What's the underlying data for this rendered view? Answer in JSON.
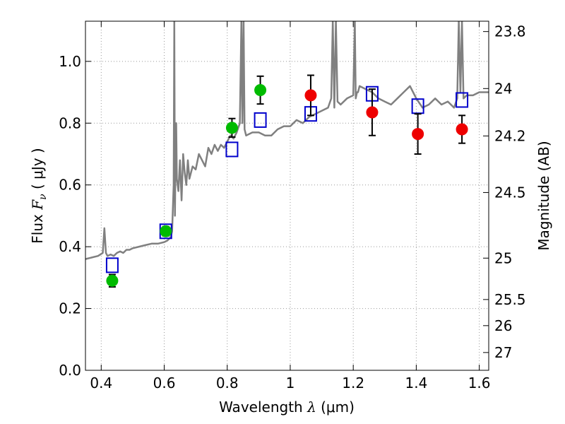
{
  "chart_data": {
    "type": "scatter",
    "xlabel_prefix": "Wavelength",
    "xlabel_symbol": "λ",
    "xlabel_unit": "(μm)",
    "ylabel_prefix": "Flux",
    "ylabel_symbol": "F",
    "ylabel_subscript": "ν",
    "ylabel_unit": "( μJy )",
    "ylabel_right": "Magnitude (AB)",
    "xlim": [
      0.35,
      1.63
    ],
    "ylim": [
      0.0,
      1.13
    ],
    "grid": true,
    "x_ticks": [
      {
        "value": 0.4,
        "label": "0.4"
      },
      {
        "value": 0.6,
        "label": "0.6"
      },
      {
        "value": 0.8,
        "label": "0.8"
      },
      {
        "value": 1.0,
        "label": "1"
      },
      {
        "value": 1.2,
        "label": "1.2"
      },
      {
        "value": 1.4,
        "label": "1.4"
      },
      {
        "value": 1.6,
        "label": "1.6"
      }
    ],
    "y_ticks": [
      {
        "value": 0.0,
        "label": "0.0"
      },
      {
        "value": 0.2,
        "label": "0.2"
      },
      {
        "value": 0.4,
        "label": "0.4"
      },
      {
        "value": 0.6,
        "label": "0.6"
      },
      {
        "value": 0.8,
        "label": "0.8"
      },
      {
        "value": 1.0,
        "label": "1.0"
      }
    ],
    "right_ticks": [
      {
        "value": 23.8,
        "label": "23.8"
      },
      {
        "value": 24,
        "label": "24"
      },
      {
        "value": 24.2,
        "label": "24.2"
      },
      {
        "value": 24.5,
        "label": "24.5"
      },
      {
        "value": 25,
        "label": "25"
      },
      {
        "value": 25.5,
        "label": "25.5"
      },
      {
        "value": 26,
        "label": "26"
      },
      {
        "value": 27,
        "label": "27"
      }
    ],
    "colors": {
      "sed": "#808080",
      "green": "#00bb00",
      "red": "#ee0000",
      "model": "#0000cc",
      "grid": "#999999"
    },
    "series": [
      {
        "name": "Model SED",
        "kind": "line",
        "x": [
          0.35,
          0.37,
          0.39,
          0.405,
          0.41,
          0.415,
          0.42,
          0.43,
          0.44,
          0.45,
          0.46,
          0.47,
          0.48,
          0.49,
          0.5,
          0.52,
          0.54,
          0.56,
          0.58,
          0.6,
          0.61,
          0.62,
          0.625,
          0.63,
          0.632,
          0.634,
          0.636,
          0.638,
          0.64,
          0.645,
          0.65,
          0.655,
          0.66,
          0.665,
          0.67,
          0.675,
          0.68,
          0.69,
          0.7,
          0.71,
          0.72,
          0.73,
          0.74,
          0.75,
          0.76,
          0.77,
          0.78,
          0.79,
          0.8,
          0.81,
          0.82,
          0.83,
          0.84,
          0.845,
          0.848,
          0.852,
          0.855,
          0.86,
          0.88,
          0.9,
          0.92,
          0.94,
          0.96,
          0.98,
          1.0,
          1.02,
          1.04,
          1.06,
          1.08,
          1.1,
          1.12,
          1.13,
          1.135,
          1.14,
          1.145,
          1.15,
          1.16,
          1.18,
          1.2,
          1.205,
          1.208,
          1.212,
          1.215,
          1.22,
          1.24,
          1.26,
          1.28,
          1.3,
          1.32,
          1.34,
          1.36,
          1.38,
          1.4,
          1.42,
          1.44,
          1.46,
          1.48,
          1.5,
          1.52,
          1.53,
          1.535,
          1.54,
          1.545,
          1.55,
          1.56,
          1.58,
          1.6,
          1.63
        ],
        "y": [
          0.36,
          0.365,
          0.37,
          0.38,
          0.46,
          0.38,
          0.37,
          0.375,
          0.37,
          0.38,
          0.385,
          0.38,
          0.39,
          0.39,
          0.395,
          0.4,
          0.405,
          0.41,
          0.41,
          0.415,
          0.42,
          0.43,
          0.45,
          0.6,
          1.13,
          0.5,
          0.7,
          0.8,
          0.62,
          0.58,
          0.68,
          0.55,
          0.7,
          0.64,
          0.6,
          0.68,
          0.62,
          0.66,
          0.65,
          0.7,
          0.68,
          0.66,
          0.72,
          0.7,
          0.73,
          0.71,
          0.73,
          0.72,
          0.74,
          0.76,
          0.75,
          0.77,
          0.8,
          1.13,
          0.8,
          1.13,
          0.78,
          0.76,
          0.77,
          0.77,
          0.76,
          0.76,
          0.78,
          0.79,
          0.79,
          0.81,
          0.8,
          0.82,
          0.83,
          0.84,
          0.85,
          0.88,
          1.13,
          0.85,
          1.13,
          0.87,
          0.86,
          0.88,
          0.89,
          1.13,
          0.88,
          0.9,
          0.9,
          0.92,
          0.91,
          0.9,
          0.88,
          0.87,
          0.86,
          0.88,
          0.9,
          0.92,
          0.88,
          0.85,
          0.86,
          0.88,
          0.86,
          0.87,
          0.85,
          0.88,
          1.13,
          0.9,
          1.13,
          0.88,
          0.89,
          0.89,
          0.9,
          0.9
        ]
      },
      {
        "name": "Green photometry",
        "kind": "points",
        "x": [
          0.435,
          0.605,
          0.815,
          0.905
        ],
        "y": [
          0.29,
          0.45,
          0.785,
          0.907
        ],
        "err": [
          0.02,
          0.015,
          0.03,
          0.045
        ]
      },
      {
        "name": "Red photometry",
        "kind": "points",
        "x": [
          1.065,
          1.26,
          1.405,
          1.545
        ],
        "y": [
          0.89,
          0.835,
          0.765,
          0.78
        ],
        "err": [
          0.065,
          0.075,
          0.065,
          0.045
        ]
      },
      {
        "name": "Model photometry",
        "kind": "squares",
        "x": [
          0.435,
          0.605,
          0.815,
          0.905,
          1.065,
          1.26,
          1.405,
          1.545
        ],
        "y": [
          0.34,
          0.45,
          0.715,
          0.81,
          0.83,
          0.895,
          0.855,
          0.875
        ]
      }
    ]
  }
}
